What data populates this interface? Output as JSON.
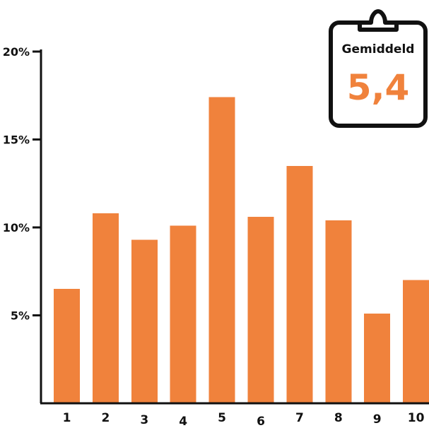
{
  "chart_data": {
    "type": "bar",
    "categories": [
      "1",
      "2",
      "3",
      "4",
      "5",
      "6",
      "7",
      "8",
      "9",
      "10"
    ],
    "values": [
      6.5,
      10.8,
      9.3,
      10.1,
      17.4,
      10.6,
      13.5,
      10.4,
      5.1,
      7.0
    ],
    "ylim": [
      0,
      20
    ],
    "yticks": [
      {
        "value": 5,
        "label": "5%"
      },
      {
        "value": 10,
        "label": "10%"
      },
      {
        "value": 15,
        "label": "15%"
      },
      {
        "value": 20,
        "label": "20%"
      }
    ],
    "bar_color": "#F0823C",
    "grid": false
  },
  "summary_card": {
    "title": "Gemiddeld",
    "value": "5,4",
    "value_color": "#F0823C",
    "icon": "clipboard-icon"
  }
}
